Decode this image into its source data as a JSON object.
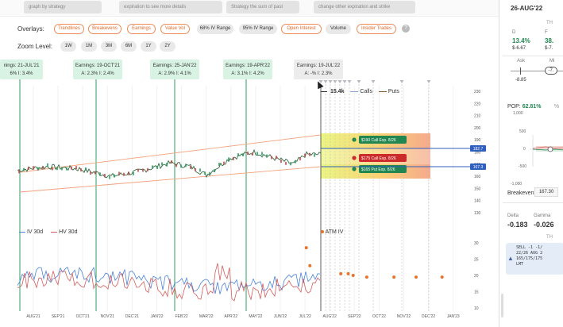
{
  "top_toolbar": {
    "buttons": [
      "graph by strategy",
      "expiration to see more details",
      "Strategy the sum of past",
      "change other expiration and strike"
    ]
  },
  "overlays": {
    "label": "Overlays:",
    "chips": [
      {
        "label": "Trendlines",
        "style": "orange"
      },
      {
        "label": "Breakevens",
        "style": "orange"
      },
      {
        "label": "Earnings",
        "style": "orange"
      },
      {
        "label": "Value Vol",
        "style": "orange"
      },
      {
        "label": "68% IV Range",
        "style": "gray"
      },
      {
        "label": "95% IV Range",
        "style": "gray"
      },
      {
        "label": "Open Interest",
        "style": "orange"
      },
      {
        "label": "Volume",
        "style": "gray"
      },
      {
        "label": "Insider Trades",
        "style": "orange"
      }
    ],
    "help_icon": "?"
  },
  "zoom": {
    "label": "Zoom Level:",
    "options": [
      "1W",
      "1M",
      "3M",
      "6M",
      "1Y",
      "2Y"
    ]
  },
  "earnings": [
    {
      "title": "nings: 21-JUL'21",
      "stats": "6%   I: 3.4%",
      "future": false
    },
    {
      "title": "Earnings: 19-OCT'21",
      "stats": "A: 2.3%   I: 2.4%",
      "future": false
    },
    {
      "title": "Earnings: 25-JAN'22",
      "stats": "A: 2.9%   I: 4.1%",
      "future": false
    },
    {
      "title": "Earnings: 19-APR'22",
      "stats": "A: 3.1%   I: 4.2%",
      "future": false
    },
    {
      "title": "Earnings: 19-JUL'22",
      "stats": "A: -%   I: 2.3%",
      "future": true
    }
  ],
  "volume_legend": {
    "volume": "15.4k",
    "calls": "Calls",
    "puts": "Puts"
  },
  "price_axis": [
    "230",
    "220",
    "210",
    "200",
    "190",
    "180",
    "170",
    "160",
    "150",
    "140",
    "130"
  ],
  "price_tags": [
    {
      "value": "182.7",
      "color": "#2f5fbf"
    },
    {
      "value": "167.3",
      "color": "#2f5fbf"
    }
  ],
  "option_legs": [
    {
      "label": "$190 Call Exp. 8/26",
      "color": "#21864f"
    },
    {
      "label": "$175 Call Exp. 8/26",
      "color": "#cc2b2b"
    },
    {
      "label": "$165 Put Exp. 8/26",
      "color": "#21864f"
    }
  ],
  "vol_legend": {
    "iv": "IV 30d",
    "hv": "HV 30d",
    "atm": "ATM IV"
  },
  "vol_axis": [
    "30",
    "25",
    "20",
    "15",
    "10"
  ],
  "x_axis": [
    "AUG'21",
    "SEP'21",
    "OCT'21",
    "NOV'21",
    "DEC'21",
    "JAN'22",
    "FEB'22",
    "MAR'22",
    "APR'22",
    "MAY'22",
    "JUN'22",
    "JUL'22",
    "AUG'22",
    "SEP'22",
    "OCT'22",
    "NOV'22",
    "DEC'22",
    "JAN'23"
  ],
  "atm_iv_points": [
    {
      "date": "JUL'22",
      "iv": 28.5
    },
    {
      "date": "JUL'22",
      "iv": 23
    },
    {
      "date": "AUG'22",
      "iv": 20.5
    },
    {
      "date": "AUG'22",
      "iv": 20.5
    },
    {
      "date": "AUG'22",
      "iv": 20
    },
    {
      "date": "SEP'22",
      "iv": 19.5
    },
    {
      "date": "OCT'22",
      "iv": 19.5
    },
    {
      "date": "NOV'22",
      "iv": 19.5
    },
    {
      "date": "DEC'22",
      "iv": 19.5
    }
  ],
  "right_panel": {
    "date": "26-AUG'22",
    "th": "TH",
    "col_d": "D",
    "col_f": "F",
    "val_pct": "13.4%",
    "val_pct2": "38.",
    "val_d": "$-6.67",
    "val_f": "$-7.",
    "ask": "Ask",
    "mid": "Mi",
    "ask_val": "-8.85",
    "mid_val": "-7.",
    "pop_label": "POP:",
    "pop_value": "62.81%",
    "pop_suffix": "%",
    "pl_axis": [
      "1,000",
      "500",
      "0",
      "-500",
      "-1,000"
    ],
    "breakeven_label": "Breakeven:",
    "breakeven_value": "167.30",
    "delta_label": "Delta",
    "delta_value": "-0.183",
    "gamma_label": "Gamma",
    "gamma_value": "-0.026",
    "th2": "TH",
    "ticket_text": "SELL -1 -1/\n22/26 AUG 2\n165/175/175\nLMT"
  },
  "colors": {
    "accent_orange": "#ee8a55",
    "earnings_green": "#d8f3e3",
    "earnings_line": "#2e9e62",
    "iv_line": "#4a83d6",
    "hv_line": "#d45c5c",
    "price_tag_blue": "#2f5fbf",
    "pop_green": "#21864f"
  }
}
